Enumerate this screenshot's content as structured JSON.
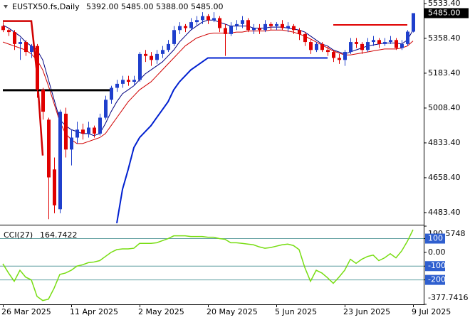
{
  "chart_data": [
    {
      "type": "candlestick",
      "ohlc_header": {
        "symbol": "EUSTX50.fs,Daily",
        "value_labels": [
          "5392.00",
          "5485.00",
          "5388.00",
          "5485.00"
        ]
      },
      "open": [
        5420,
        5400,
        5390,
        5330,
        5340,
        5290,
        5320,
        5100,
        4950,
        4700,
        4500,
        4980,
        4800,
        4860,
        4900,
        4880,
        4910,
        4880,
        4960,
        5050,
        5110,
        5130,
        5150,
        5140,
        5150,
        5280,
        5270,
        5250,
        5280,
        5300,
        5330,
        5400,
        5420,
        5410,
        5440,
        5450,
        5470,
        5450,
        5460,
        5410,
        5380,
        5420,
        5430,
        5450,
        5400,
        5410,
        5400,
        5430,
        5420,
        5430,
        5410,
        5420,
        5400,
        5380,
        5340,
        5300,
        5330,
        5300,
        5290,
        5260,
        5250,
        5290,
        5340,
        5330,
        5300,
        5340,
        5350,
        5330,
        5340,
        5350,
        5310,
        5330,
        5392
      ],
      "high": [
        5440,
        5410,
        5400,
        5360,
        5350,
        5330,
        5330,
        5110,
        4960,
        4760,
        5000,
        5010,
        4900,
        4940,
        4930,
        4940,
        4920,
        4980,
        5070,
        5120,
        5150,
        5170,
        5170,
        5170,
        5290,
        5300,
        5290,
        5300,
        5320,
        5350,
        5420,
        5440,
        5430,
        5460,
        5470,
        5490,
        5480,
        5490,
        5470,
        5430,
        5440,
        5450,
        5470,
        5460,
        5430,
        5430,
        5450,
        5440,
        5440,
        5450,
        5440,
        5430,
        5410,
        5390,
        5350,
        5340,
        5340,
        5320,
        5300,
        5280,
        5300,
        5360,
        5360,
        5340,
        5360,
        5370,
        5360,
        5360,
        5370,
        5360,
        5350,
        5400,
        5485
      ],
      "low": [
        5390,
        5370,
        5300,
        5250,
        5270,
        5260,
        5060,
        4950,
        4450,
        4480,
        4480,
        4760,
        4720,
        4830,
        4850,
        4860,
        4860,
        4870,
        4950,
        5030,
        5090,
        5110,
        5120,
        5120,
        5140,
        5240,
        5220,
        5230,
        5260,
        5290,
        5320,
        5380,
        5390,
        5400,
        5420,
        5430,
        5430,
        5440,
        5390,
        5270,
        5370,
        5400,
        5410,
        5390,
        5380,
        5380,
        5390,
        5400,
        5400,
        5400,
        5390,
        5380,
        5350,
        5320,
        5280,
        5290,
        5290,
        5270,
        5240,
        5230,
        5220,
        5280,
        5310,
        5280,
        5290,
        5320,
        5310,
        5320,
        5330,
        5300,
        5300,
        5320,
        5388
      ],
      "close": [
        5400,
        5390,
        5330,
        5340,
        5290,
        5320,
        5100,
        4990,
        4660,
        4520,
        4990,
        4800,
        4860,
        4900,
        4880,
        4910,
        4880,
        4960,
        5050,
        5110,
        5130,
        5150,
        5140,
        5150,
        5280,
        5270,
        5250,
        5280,
        5300,
        5330,
        5400,
        5420,
        5410,
        5440,
        5450,
        5470,
        5450,
        5460,
        5410,
        5380,
        5420,
        5430,
        5450,
        5400,
        5410,
        5400,
        5430,
        5420,
        5430,
        5410,
        5420,
        5400,
        5380,
        5340,
        5300,
        5330,
        5300,
        5290,
        5260,
        5250,
        5290,
        5340,
        5330,
        5300,
        5340,
        5350,
        5330,
        5340,
        5350,
        5310,
        5330,
        5392,
        5485
      ],
      "up_color": "#1f3fcc",
      "down_color": "#e00000",
      "last_price": {
        "value": 5485,
        "label": "5485.00"
      },
      "lines": [
        {
          "color": "#000080",
          "width": 1,
          "values": [
            5425,
            5410,
            5390,
            5370,
            5340,
            5320,
            5300,
            5250,
            5150,
            5050,
            4950,
            4920,
            4900,
            4890,
            4880,
            4880,
            4870,
            4880,
            4930,
            4990,
            5040,
            5080,
            5100,
            5120,
            5150,
            5180,
            5200,
            5220,
            5240,
            5270,
            5300,
            5340,
            5370,
            5400,
            5420,
            5440,
            5450,
            5450,
            5440,
            5430,
            5420,
            5420,
            5420,
            5420,
            5410,
            5410,
            5410,
            5415,
            5415,
            5415,
            5410,
            5405,
            5400,
            5390,
            5370,
            5350,
            5330,
            5320,
            5300,
            5290,
            5280,
            5290,
            5300,
            5310,
            5320,
            5325,
            5330,
            5335,
            5335,
            5335,
            5330,
            5350,
            5400
          ]
        },
        {
          "color": "#d00000",
          "width": 1,
          "values": [
            5340,
            5330,
            5320,
            5310,
            5300,
            5280,
            5250,
            5200,
            5120,
            5030,
            4940,
            4880,
            4850,
            4830,
            4830,
            4840,
            4850,
            4860,
            4880,
            4920,
            4960,
            5000,
            5040,
            5070,
            5100,
            5120,
            5140,
            5170,
            5200,
            5230,
            5260,
            5290,
            5320,
            5340,
            5360,
            5370,
            5380,
            5385,
            5385,
            5385,
            5385,
            5390,
            5390,
            5395,
            5395,
            5395,
            5395,
            5400,
            5400,
            5400,
            5395,
            5390,
            5380,
            5370,
            5355,
            5340,
            5325,
            5310,
            5295,
            5285,
            5275,
            5275,
            5280,
            5285,
            5290,
            5295,
            5300,
            5305,
            5305,
            5305,
            5310,
            5320,
            5345
          ]
        },
        {
          "color": "#d00000",
          "width": 2.5,
          "values": [
            5445,
            5445,
            5445,
            5445,
            5445,
            5445,
            5180,
            4770,
            null,
            null,
            null,
            null,
            null,
            null,
            null,
            null,
            null,
            null,
            null,
            null,
            null,
            null,
            null,
            null,
            null,
            null,
            null,
            null,
            null,
            null,
            null,
            null,
            null,
            null,
            null,
            null,
            null,
            null,
            null,
            null,
            null,
            null,
            null,
            null,
            null,
            null,
            null,
            null,
            null,
            null,
            null,
            null,
            null,
            null,
            null,
            null,
            null,
            null,
            null,
            null,
            null,
            null,
            null,
            null,
            null,
            null,
            null,
            null,
            null,
            null,
            null,
            null,
            null
          ]
        },
        {
          "color": "#000000",
          "width": 3,
          "values": [
            5098,
            5098,
            5098,
            5098,
            5098,
            5098,
            5098,
            5098,
            5098,
            5098,
            5098,
            5098,
            5098,
            5098,
            5098,
            5098,
            5098,
            5098,
            5098,
            5098,
            null,
            null,
            null,
            null,
            null,
            null,
            null,
            null,
            null,
            null,
            null,
            null,
            null,
            null,
            null,
            null,
            null,
            null,
            null,
            null,
            null,
            null,
            null,
            null,
            null,
            null,
            null,
            null,
            null,
            null,
            null,
            null,
            null,
            null,
            null,
            null,
            null,
            null,
            null,
            null,
            null,
            null,
            null,
            null,
            null,
            null,
            null,
            null,
            null,
            null,
            null,
            null,
            null
          ]
        },
        {
          "color": "#0020d0",
          "width": 2,
          "values": [
            null,
            null,
            null,
            null,
            null,
            null,
            null,
            null,
            null,
            null,
            null,
            null,
            null,
            null,
            null,
            null,
            null,
            null,
            null,
            null,
            4430,
            4600,
            4700,
            4810,
            4860,
            4890,
            4920,
            4960,
            5000,
            5040,
            5100,
            5140,
            5170,
            5200,
            5220,
            5240,
            5260,
            5260,
            5260,
            5260,
            5260,
            5260,
            5260,
            5260,
            5260,
            5260,
            5260,
            5260,
            5260,
            5260,
            5260,
            5260,
            5260,
            5260,
            5260,
            5260,
            5260,
            5260,
            null,
            null,
            null,
            null,
            null,
            null,
            null,
            null,
            null,
            null,
            null,
            null,
            null,
            null,
            null
          ]
        },
        {
          "color": "#e00000",
          "width": 2,
          "values": [
            null,
            null,
            null,
            null,
            null,
            null,
            null,
            null,
            null,
            null,
            null,
            null,
            null,
            null,
            null,
            null,
            null,
            null,
            null,
            null,
            null,
            null,
            null,
            null,
            null,
            null,
            null,
            null,
            null,
            null,
            null,
            null,
            null,
            null,
            null,
            null,
            null,
            null,
            null,
            null,
            null,
            null,
            null,
            null,
            null,
            null,
            null,
            null,
            null,
            null,
            null,
            null,
            null,
            null,
            null,
            null,
            null,
            null,
            5426,
            5426,
            5426,
            5426,
            5426,
            5426,
            5426,
            5426,
            5426,
            5426,
            5426,
            5426,
            5426,
            5426,
            null
          ]
        }
      ],
      "ylim": [
        4426,
        5551
      ],
      "yticks": [
        {
          "value": 5533.4,
          "label": "5533.40"
        },
        {
          "value": 5358.4,
          "label": "5358.40"
        },
        {
          "value": 5183.4,
          "label": "5183.40"
        },
        {
          "value": 5008.4,
          "label": "5008.40"
        },
        {
          "value": 4833.4,
          "label": "4833.40"
        },
        {
          "value": 4658.4,
          "label": "4658.40"
        },
        {
          "value": 4483.4,
          "label": "4483.40"
        }
      ]
    },
    {
      "type": "line",
      "name": "CCI(27)",
      "color": "#77dd11",
      "categories": [
        "26 Mar 2025",
        null,
        null,
        null,
        null,
        null,
        null,
        null,
        null,
        null,
        null,
        null,
        "11 Apr 2025",
        null,
        null,
        null,
        null,
        null,
        null,
        null,
        null,
        null,
        null,
        null,
        "2 May 2025",
        null,
        null,
        null,
        null,
        null,
        null,
        null,
        null,
        null,
        null,
        null,
        "20 May 2025",
        null,
        null,
        null,
        null,
        null,
        null,
        null,
        null,
        null,
        null,
        null,
        "5 Jun 2025",
        null,
        null,
        null,
        null,
        null,
        null,
        null,
        null,
        null,
        null,
        null,
        "23 Jun 2025",
        null,
        null,
        null,
        null,
        null,
        null,
        null,
        null,
        null,
        null,
        null,
        "9 Jul 2025"
      ],
      "values": [
        -83,
        -150,
        -210,
        -130,
        -180,
        -200,
        -320,
        -350,
        -340,
        -260,
        -160,
        -150,
        -130,
        -100,
        -90,
        -75,
        -70,
        -60,
        -30,
        0,
        20,
        25,
        25,
        30,
        65,
        65,
        65,
        70,
        85,
        100,
        120,
        120,
        120,
        115,
        115,
        115,
        110,
        110,
        100,
        95,
        70,
        70,
        65,
        60,
        55,
        40,
        30,
        35,
        45,
        55,
        60,
        50,
        20,
        -110,
        -210,
        -130,
        -150,
        -185,
        -225,
        -180,
        -130,
        -50,
        -80,
        -50,
        -30,
        -20,
        -60,
        -40,
        -10,
        -40,
        10,
        80,
        164.7422
      ],
      "ylim": [
        -377.7416,
        190.5748
      ],
      "yticks": [
        190.5748,
        100,
        {
          "value": 0,
          "label": "0.00"
        },
        -100,
        -200,
        -377.7416
      ],
      "levels": [
        100,
        -100,
        -200
      ],
      "level_color": "#5f9ea0"
    }
  ]
}
